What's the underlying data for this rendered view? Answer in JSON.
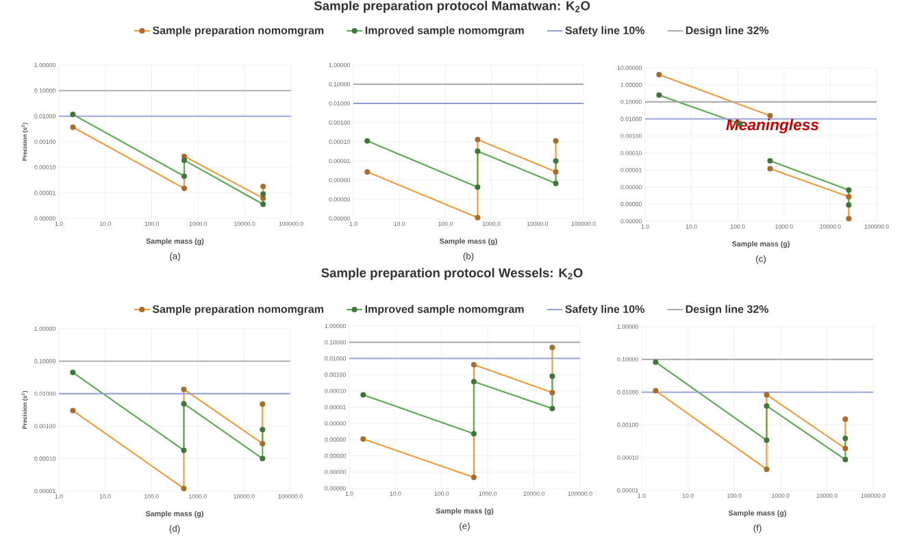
{
  "chart_data": [
    {
      "type": "line",
      "subtitle": "(a)",
      "xlabel": "Sample mass (g)",
      "ylabel": "Precision (s$^{2}$)",
      "log": "xy",
      "grid": true,
      "marker": "circle",
      "xlim": [
        1,
        100000
      ],
      "xticks": [
        {
          "value": 1,
          "label": "1.0"
        },
        {
          "value": 10,
          "label": "10.0"
        },
        {
          "value": 100,
          "label": "100.0"
        },
        {
          "value": 1000,
          "label": "1000.0"
        },
        {
          "value": 10000,
          "label": "10000.0"
        },
        {
          "value": 100000,
          "label": "100000.0"
        }
      ],
      "ylim": [
        1e-06,
        1
      ],
      "yticks": [
        {
          "value": 1e-06,
          "label": "0.00000"
        },
        {
          "value": 1e-05,
          "label": "0.00001"
        },
        {
          "value": 0.0001,
          "label": "0.00010"
        },
        {
          "value": 0.001,
          "label": "0.00100"
        },
        {
          "value": 0.01,
          "label": "0.01000"
        },
        {
          "value": 0.1,
          "label": "0.10000"
        },
        {
          "value": 1,
          "label": "1.00000"
        }
      ],
      "x": [
        2,
        500,
        500,
        25000,
        25000
      ],
      "series": [
        {
          "color": "#f39b3a",
          "values": [
            0.0037,
            1.5e-05,
            0.00027,
            6.2e-06,
            1.8e-05
          ]
        },
        {
          "color": "#5aaa52",
          "values": [
            0.0117,
            4.5e-05,
            0.00019,
            3.6e-06,
            9e-06
          ]
        }
      ],
      "ref_lines": [
        {
          "axis": "y",
          "value": 0.01,
          "color": "#8e9bd6"
        },
        {
          "axis": "y",
          "value": 0.1,
          "color": "#a6a6a6"
        }
      ]
    },
    {
      "type": "line",
      "title": "Sample preparation protocol Mamatwan: K$_{2}$O",
      "subtitle": "(b)",
      "xlabel": "Sample mass (g)",
      "log": "xy",
      "grid": true,
      "legend": "top",
      "marker": "circle",
      "xlim": [
        1,
        100000
      ],
      "xticks": [
        {
          "value": 1,
          "label": "1.0"
        },
        {
          "value": 10,
          "label": "10.0"
        },
        {
          "value": 100,
          "label": "100.0"
        },
        {
          "value": 1000,
          "label": "1000.0"
        },
        {
          "value": 10000,
          "label": "10000.0"
        },
        {
          "value": 100000,
          "label": "100000.0"
        }
      ],
      "ylim": [
        1e-08,
        1
      ],
      "yticks": [
        {
          "value": 1e-08,
          "label": "0.00000"
        },
        {
          "value": 1e-07,
          "label": "0.00000"
        },
        {
          "value": 1e-06,
          "label": "0.00000"
        },
        {
          "value": 1e-05,
          "label": "0.00001"
        },
        {
          "value": 0.0001,
          "label": "0.00010"
        },
        {
          "value": 0.001,
          "label": "0.00100"
        },
        {
          "value": 0.01,
          "label": "0.01000"
        },
        {
          "value": 0.1,
          "label": "0.10000"
        },
        {
          "value": 1,
          "label": "1.00000"
        }
      ],
      "x": [
        2,
        500,
        500,
        25000,
        25000
      ],
      "series": [
        {
          "name": "Sample preparation nomomgram",
          "color": "#f39b3a",
          "values": [
            2.7e-06,
            1.1e-08,
            0.00013,
            2.7e-06,
            0.00011
          ]
        },
        {
          "name": "Improved sample nomomgram",
          "color": "#5aaa52",
          "values": [
            0.00011,
            4.3e-07,
            3.2e-05,
            6.8e-07,
            1e-05
          ]
        }
      ],
      "ref_lines": [
        {
          "axis": "y",
          "value": 0.01,
          "label": "Safety line 10%",
          "color": "#8e9bd6"
        },
        {
          "axis": "y",
          "value": 0.1,
          "label": "Design line 32%",
          "color": "#a6a6a6"
        }
      ]
    },
    {
      "type": "line",
      "subtitle": "(c)",
      "xlabel": "Sample mass (g)",
      "log": "xy",
      "grid": true,
      "marker": "circle",
      "xlim": [
        1,
        100000
      ],
      "xticks": [
        {
          "value": 1,
          "label": "1.0"
        },
        {
          "value": 10,
          "label": "10.0"
        },
        {
          "value": 100,
          "label": "100.0"
        },
        {
          "value": 1000,
          "label": "1000.0"
        },
        {
          "value": 10000,
          "label": "10000.0"
        },
        {
          "value": 100000,
          "label": "100000.0"
        }
      ],
      "ylim": [
        1e-08,
        10
      ],
      "yticks": [
        {
          "value": 1e-08,
          "label": "0.00000"
        },
        {
          "value": 1e-07,
          "label": "0.00000"
        },
        {
          "value": 1e-06,
          "label": "0.00000"
        },
        {
          "value": 1e-05,
          "label": "0.00001"
        },
        {
          "value": 0.0001,
          "label": "0.00010"
        },
        {
          "value": 0.001,
          "label": "0.00100"
        },
        {
          "value": 0.01,
          "label": "0.01000"
        },
        {
          "value": 0.1,
          "label": "0.10000"
        },
        {
          "value": 1,
          "label": "1.00000"
        },
        {
          "value": 10,
          "label": "10.00000"
        }
      ],
      "series": [
        {
          "color": "#f39b3a",
          "x": [
            2,
            500
          ],
          "values": [
            4.0,
            0.0155
          ]
        },
        {
          "color": "#f39b3a",
          "x": [
            500,
            25000,
            25000
          ],
          "values": [
            1.2e-05,
            2.7e-07,
            1.4e-08
          ]
        },
        {
          "color": "#5aaa52",
          "x": [
            2,
            110
          ],
          "values": [
            0.25,
            0.0053
          ]
        },
        {
          "color": "#5aaa52",
          "x": [
            500,
            25000,
            25000
          ],
          "values": [
            3.5e-05,
            6.8e-07,
            9e-08
          ]
        }
      ],
      "ref_lines": [
        {
          "axis": "y",
          "value": 0.01,
          "color": "#8e9bd6"
        },
        {
          "axis": "y",
          "value": 0.1,
          "color": "#a6a6a6"
        }
      ],
      "annotations": [
        "Meaningless"
      ]
    },
    {
      "type": "line",
      "subtitle": "(d)",
      "xlabel": "Sample mass (g)",
      "ylabel": "Precision (s$^{2}$)",
      "log": "xy",
      "grid": true,
      "marker": "circle",
      "xlim": [
        1,
        100000
      ],
      "xticks": [
        {
          "value": 1,
          "label": "1.0"
        },
        {
          "value": 10,
          "label": "10.0"
        },
        {
          "value": 100,
          "label": "100.0"
        },
        {
          "value": 1000,
          "label": "1000.0"
        },
        {
          "value": 10000,
          "label": "10000.0"
        },
        {
          "value": 100000,
          "label": "100000.0"
        }
      ],
      "ylim": [
        1e-05,
        1
      ],
      "yticks": [
        {
          "value": 1e-05,
          "label": "0.00001"
        },
        {
          "value": 0.0001,
          "label": "0.00010"
        },
        {
          "value": 0.001,
          "label": "0.00100"
        },
        {
          "value": 0.01,
          "label": "0.01000"
        },
        {
          "value": 0.1,
          "label": "0.10000"
        },
        {
          "value": 1,
          "label": "1.00000"
        }
      ],
      "x": [
        2,
        500,
        500,
        25000,
        25000
      ],
      "series": [
        {
          "color": "#f39b3a",
          "values": [
            0.003,
            1.2e-05,
            0.0136,
            0.00029,
            0.0048
          ]
        },
        {
          "color": "#5aaa52",
          "values": [
            0.045,
            0.00018,
            0.0049,
            0.0001,
            0.00078
          ]
        }
      ],
      "ref_lines": [
        {
          "axis": "y",
          "value": 0.01,
          "color": "#8e9bd6"
        },
        {
          "axis": "y",
          "value": 0.1,
          "color": "#a6a6a6"
        }
      ]
    },
    {
      "type": "line",
      "title": "Sample preparation protocol Wessels: K$_{2}$O",
      "subtitle": "(e)",
      "xlabel": "Sample mass (g)",
      "log": "xy",
      "grid": true,
      "legend": "top",
      "marker": "circle",
      "xlim": [
        1,
        100000
      ],
      "xticks": [
        {
          "value": 1,
          "label": "1.0"
        },
        {
          "value": 10,
          "label": "10.0"
        },
        {
          "value": 100,
          "label": "100.0"
        },
        {
          "value": 1000,
          "label": "1000.0"
        },
        {
          "value": 10000,
          "label": "10000.0"
        },
        {
          "value": 100000,
          "label": "100000.0"
        }
      ],
      "ylim": [
        1e-10,
        1
      ],
      "yticks": [
        {
          "value": 1e-10,
          "label": "0.00000"
        },
        {
          "value": 1e-09,
          "label": "0.00000"
        },
        {
          "value": 1e-08,
          "label": "0.00000"
        },
        {
          "value": 1e-07,
          "label": "0.00000"
        },
        {
          "value": 1e-06,
          "label": "0.00000"
        },
        {
          "value": 1e-05,
          "label": "0.00001"
        },
        {
          "value": 0.0001,
          "label": "0.00010"
        },
        {
          "value": 0.001,
          "label": "0.00100"
        },
        {
          "value": 0.01,
          "label": "0.01000"
        },
        {
          "value": 0.1,
          "label": "0.10000"
        },
        {
          "value": 1,
          "label": "1.00000"
        }
      ],
      "x": [
        2,
        500,
        500,
        25000,
        25000
      ],
      "series": [
        {
          "name": "Sample preparation nomomgram",
          "color": "#f39b3a",
          "values": [
            1.1e-07,
            4.7e-10,
            0.0041,
            7.9e-05,
            0.048
          ]
        },
        {
          "name": "Improved sample nomomgram",
          "color": "#5aaa52",
          "values": [
            5.7e-05,
            2.3e-07,
            0.00037,
            8.3e-06,
            0.00081
          ]
        }
      ],
      "ref_lines": [
        {
          "axis": "y",
          "value": 0.01,
          "label": "Safety line 10%",
          "color": "#8e9bd6"
        },
        {
          "axis": "y",
          "value": 0.1,
          "label": "Design line 32%",
          "color": "#a6a6a6"
        }
      ]
    },
    {
      "type": "line",
      "subtitle": "(f)",
      "xlabel": "Sample mass (g)",
      "log": "xy",
      "grid": true,
      "marker": "circle",
      "xlim": [
        1,
        100000
      ],
      "xticks": [
        {
          "value": 1,
          "label": "1.0"
        },
        {
          "value": 10,
          "label": "10.0"
        },
        {
          "value": 100,
          "label": "100.0"
        },
        {
          "value": 1000,
          "label": "1000.0"
        },
        {
          "value": 10000,
          "label": "10000.0"
        },
        {
          "value": 100000,
          "label": "100000.0"
        }
      ],
      "ylim": [
        1e-05,
        1
      ],
      "yticks": [
        {
          "value": 1e-05,
          "label": "0.00001"
        },
        {
          "value": 0.0001,
          "label": "0.00010"
        },
        {
          "value": 0.001,
          "label": "0.00100"
        },
        {
          "value": 0.01,
          "label": "0.01000"
        },
        {
          "value": 0.1,
          "label": "0.10000"
        },
        {
          "value": 1,
          "label": "1.00000"
        }
      ],
      "x": [
        2,
        500,
        500,
        25000,
        25000
      ],
      "series": [
        {
          "color": "#f39b3a",
          "values": [
            0.011,
            4.4e-05,
            0.0083,
            0.00019,
            0.0015
          ]
        },
        {
          "color": "#5aaa52",
          "values": [
            0.083,
            0.00034,
            0.0038,
            8.7e-05,
            0.00039
          ]
        }
      ],
      "ref_lines": [
        {
          "axis": "y",
          "value": 0.01,
          "color": "#8e9bd6"
        },
        {
          "axis": "y",
          "value": 0.1,
          "color": "#a6a6a6"
        }
      ]
    }
  ]
}
